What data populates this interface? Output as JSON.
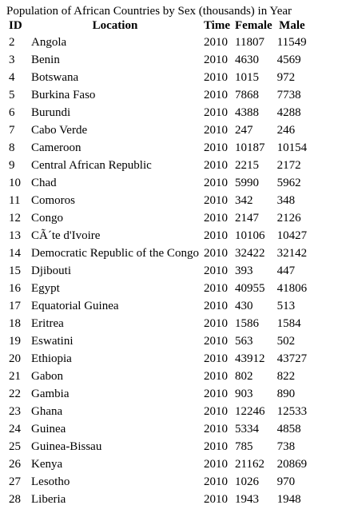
{
  "title": "Population of African Countries by Sex (thousands) in Year",
  "headers": {
    "id": "ID",
    "location": "Location",
    "time": "Time",
    "female": "Female",
    "male": "Male"
  },
  "rows": [
    {
      "id": "2",
      "location": "Angola",
      "time": "2010",
      "female": "11807",
      "male": "11549"
    },
    {
      "id": "3",
      "location": "Benin",
      "time": "2010",
      "female": "4630",
      "male": "4569"
    },
    {
      "id": "4",
      "location": "Botswana",
      "time": "2010",
      "female": "1015",
      "male": "972"
    },
    {
      "id": "5",
      "location": "Burkina Faso",
      "time": "2010",
      "female": "7868",
      "male": "7738"
    },
    {
      "id": "6",
      "location": "Burundi",
      "time": "2010",
      "female": "4388",
      "male": "4288"
    },
    {
      "id": "7",
      "location": "Cabo Verde",
      "time": "2010",
      "female": "247",
      "male": "246"
    },
    {
      "id": "8",
      "location": "Cameroon",
      "time": "2010",
      "female": "10187",
      "male": "10154"
    },
    {
      "id": "9",
      "location": "Central African Republic",
      "time": "2010",
      "female": "2215",
      "male": "2172"
    },
    {
      "id": "10",
      "location": "Chad",
      "time": "2010",
      "female": "5990",
      "male": "5962"
    },
    {
      "id": "11",
      "location": "Comoros",
      "time": "2010",
      "female": "342",
      "male": "348"
    },
    {
      "id": "12",
      "location": "Congo",
      "time": "2010",
      "female": "2147",
      "male": "2126"
    },
    {
      "id": "13",
      "location": "CÃ´te d'Ivoire",
      "time": "2010",
      "female": "10106",
      "male": "10427"
    },
    {
      "id": "14",
      "location": "Democratic Republic of the Congo",
      "time": "2010",
      "female": "32422",
      "male": "32142"
    },
    {
      "id": "15",
      "location": "Djibouti",
      "time": "2010",
      "female": "393",
      "male": "447"
    },
    {
      "id": "16",
      "location": "Egypt",
      "time": "2010",
      "female": "40955",
      "male": "41806"
    },
    {
      "id": "17",
      "location": "Equatorial Guinea",
      "time": "2010",
      "female": "430",
      "male": "513"
    },
    {
      "id": "18",
      "location": "Eritrea",
      "time": "2010",
      "female": "1586",
      "male": "1584"
    },
    {
      "id": "19",
      "location": "Eswatini",
      "time": "2010",
      "female": "563",
      "male": "502"
    },
    {
      "id": "20",
      "location": "Ethiopia",
      "time": "2010",
      "female": "43912",
      "male": "43727"
    },
    {
      "id": "21",
      "location": "Gabon",
      "time": "2010",
      "female": "802",
      "male": "822"
    },
    {
      "id": "22",
      "location": "Gambia",
      "time": "2010",
      "female": "903",
      "male": "890"
    },
    {
      "id": "23",
      "location": "Ghana",
      "time": "2010",
      "female": "12246",
      "male": "12533"
    },
    {
      "id": "24",
      "location": "Guinea",
      "time": "2010",
      "female": "5334",
      "male": "4858"
    },
    {
      "id": "25",
      "location": "Guinea-Bissau",
      "time": "2010",
      "female": "785",
      "male": "738"
    },
    {
      "id": "26",
      "location": "Kenya",
      "time": "2010",
      "female": "21162",
      "male": "20869"
    },
    {
      "id": "27",
      "location": "Lesotho",
      "time": "2010",
      "female": "1026",
      "male": "970"
    },
    {
      "id": "28",
      "location": "Liberia",
      "time": "2010",
      "female": "1943",
      "male": "1948"
    }
  ]
}
